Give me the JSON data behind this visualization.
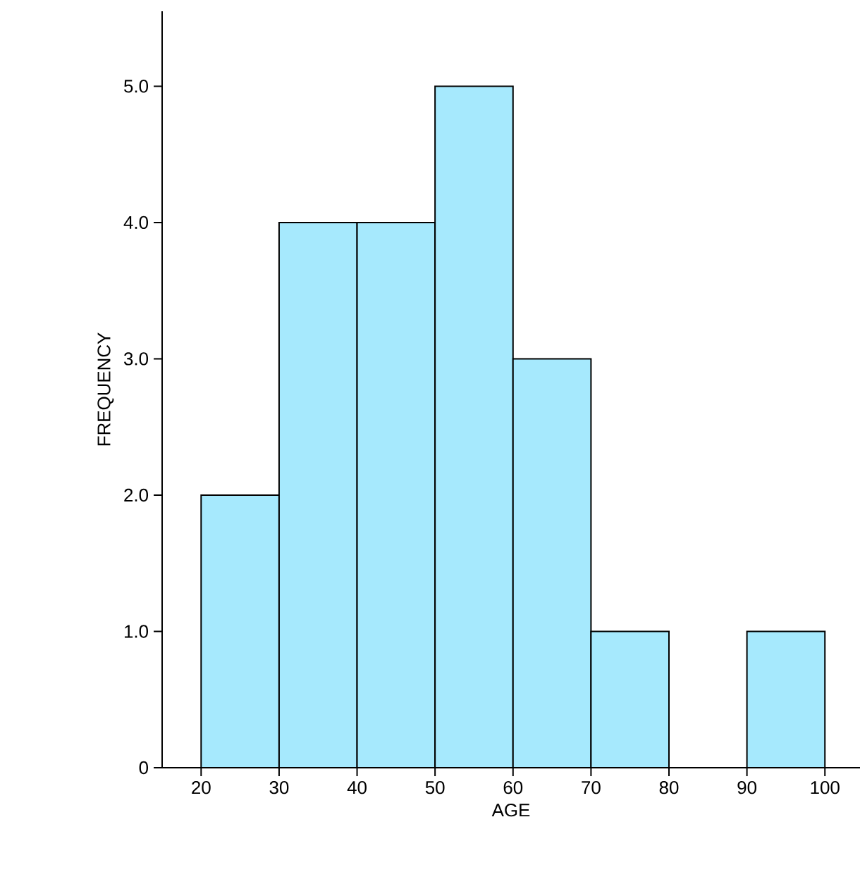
{
  "chart_data": {
    "type": "histogram",
    "xlabel": "AGE",
    "ylabel": "FREQUENCY",
    "bins": [
      20,
      30,
      40,
      50,
      60,
      70,
      80,
      90,
      100
    ],
    "values": [
      2,
      4,
      4,
      5,
      3,
      1,
      0,
      1
    ],
    "color": "#a6e9fd",
    "xlim": [
      15,
      104.5
    ],
    "ylim": [
      0,
      5.55
    ],
    "xticks": [
      20,
      30,
      40,
      50,
      60,
      70,
      80,
      90,
      100
    ],
    "yticks": [
      0,
      {
        "value": 1,
        "label": "1.0"
      },
      {
        "value": 2,
        "label": "2.0"
      },
      {
        "value": 3,
        "label": "3.0"
      },
      {
        "value": 4,
        "label": "4.0"
      },
      {
        "value": 5,
        "label": "5.0"
      }
    ]
  }
}
